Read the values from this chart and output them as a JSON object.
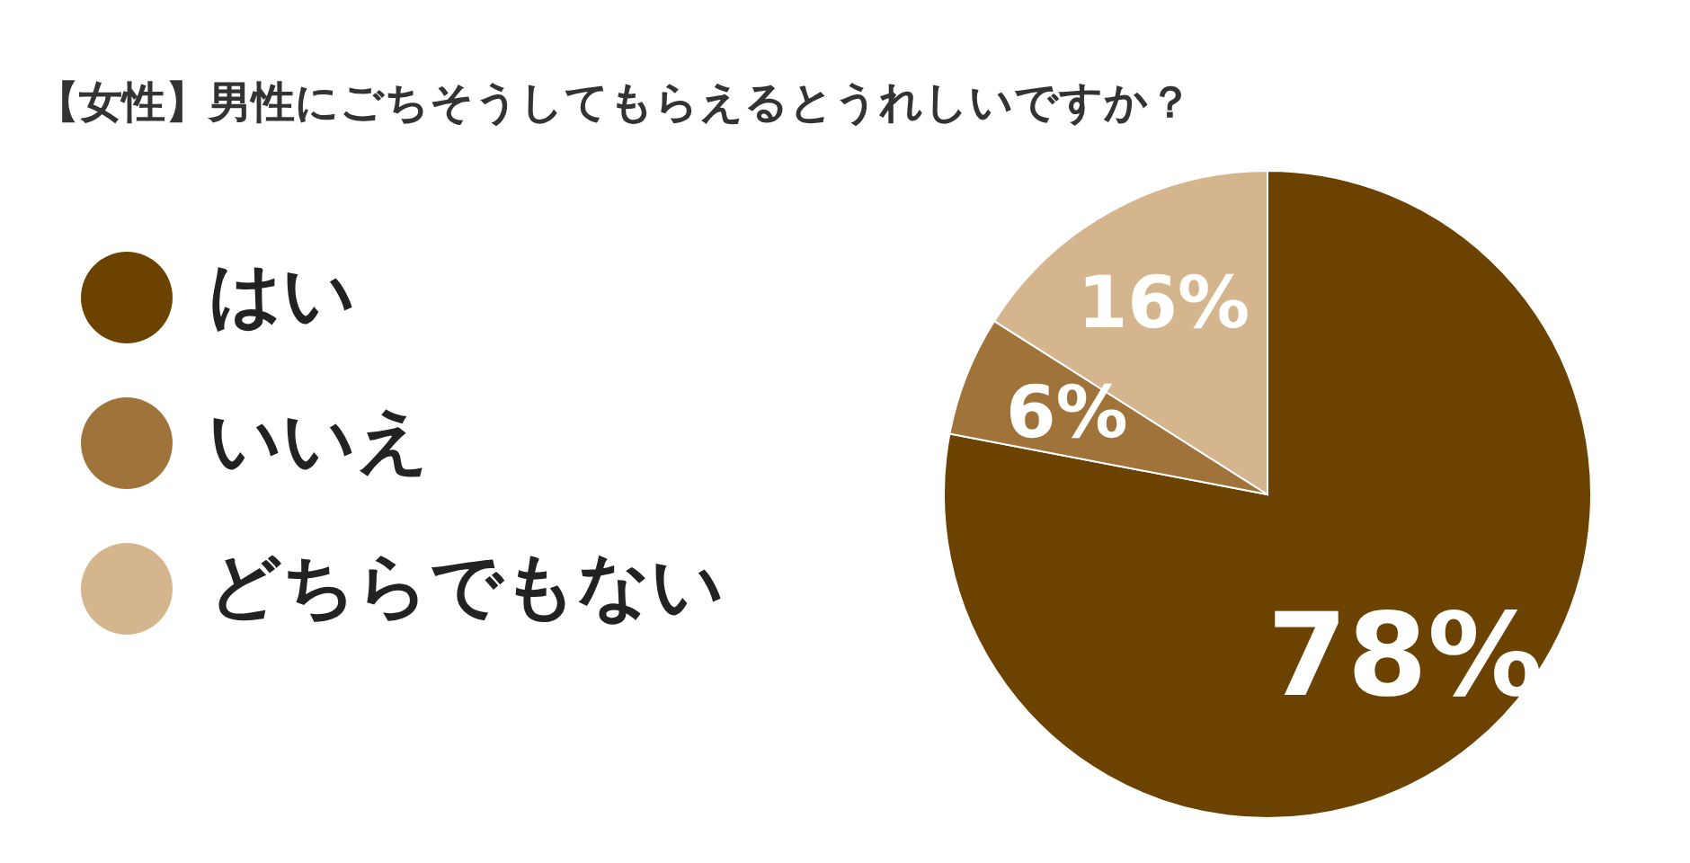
{
  "chart_data": {
    "type": "pie",
    "title": "【女性】男性にごちそうしてもらえるとうれしいですか？",
    "categories": [
      "はい",
      "いいえ",
      "どちらでもない"
    ],
    "values": [
      78,
      6,
      16
    ],
    "colors": [
      "#6b4200",
      "#a0733b",
      "#d4b58e"
    ],
    "value_labels": [
      "78%",
      "6%",
      "16%"
    ],
    "legend": "left"
  }
}
